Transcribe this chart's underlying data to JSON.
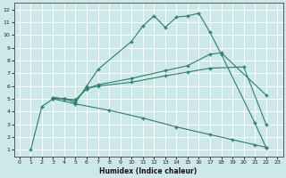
{
  "xlabel": "Humidex (Indice chaleur)",
  "bg_color": "#cce8e8",
  "grid_color": "#ffffff",
  "line_color": "#2e7d6e",
  "xlim": [
    -0.5,
    23.5
  ],
  "ylim": [
    0.5,
    12.5
  ],
  "xticks": [
    0,
    1,
    2,
    3,
    4,
    5,
    6,
    7,
    8,
    9,
    10,
    11,
    12,
    13,
    14,
    15,
    16,
    17,
    18,
    19,
    20,
    21,
    22,
    23
  ],
  "yticks": [
    1,
    2,
    3,
    4,
    5,
    6,
    7,
    8,
    9,
    10,
    11,
    12
  ],
  "line1_x": [
    1,
    2,
    3,
    4,
    5,
    6,
    7,
    10,
    11,
    12,
    13,
    14,
    15,
    16,
    17,
    18,
    21,
    22
  ],
  "line1_y": [
    1.0,
    4.4,
    5.0,
    5.0,
    4.7,
    6.0,
    7.3,
    9.5,
    10.7,
    11.5,
    10.6,
    11.4,
    11.5,
    11.7,
    10.2,
    8.5,
    3.1,
    1.2
  ],
  "line2_x": [
    3,
    4,
    5,
    6,
    7,
    10,
    13,
    15,
    17,
    18,
    22
  ],
  "line2_y": [
    5.1,
    5.0,
    4.9,
    5.8,
    6.1,
    6.6,
    7.2,
    7.6,
    8.5,
    8.6,
    5.3
  ],
  "line3_x": [
    3,
    4,
    5,
    6,
    7,
    10,
    13,
    15,
    17,
    20,
    22
  ],
  "line3_y": [
    5.1,
    5.0,
    4.9,
    5.8,
    6.0,
    6.3,
    6.8,
    7.1,
    7.4,
    7.5,
    3.0
  ],
  "line4_x": [
    3,
    5,
    8,
    11,
    14,
    17,
    19,
    21,
    22
  ],
  "line4_y": [
    5.0,
    4.6,
    4.1,
    3.5,
    2.8,
    2.2,
    1.8,
    1.4,
    1.2
  ]
}
